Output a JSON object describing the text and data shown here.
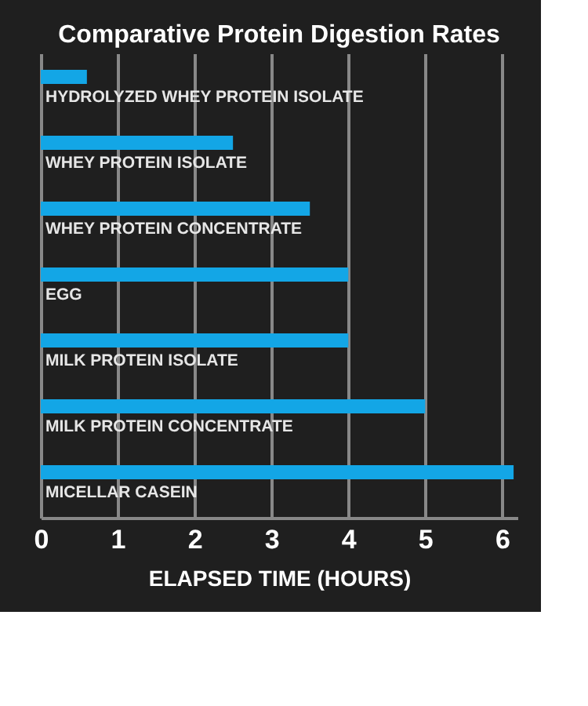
{
  "chart_data": {
    "type": "bar",
    "orientation": "horizontal",
    "title": "Comparative Protein Digestion Rates",
    "xlabel": "ELAPSED TIME (HOURS)",
    "categories": [
      "HYDROLYZED WHEY PROTEIN ISOLATE",
      "WHEY PROTEIN ISOLATE",
      "WHEY PROTEIN CONCENTRATE",
      "EGG",
      "MILK PROTEIN ISOLATE",
      "MILK PROTEIN CONCENTRATE",
      "MICELLAR CASEIN"
    ],
    "values": [
      0.6,
      2.5,
      3.5,
      4,
      4,
      5,
      6.15
    ],
    "color": "#13a6e6",
    "xlim": [
      0,
      6.2
    ],
    "xticks": [
      0,
      1,
      2,
      3,
      4,
      5,
      6
    ],
    "grid": "x"
  }
}
